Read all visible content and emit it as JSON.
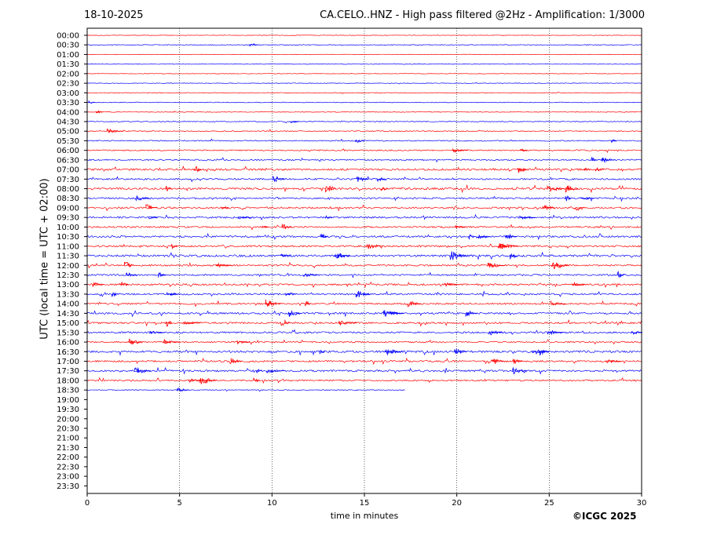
{
  "header": {
    "date": "18-10-2025",
    "title": "CA.CELO..HNZ - High pass filtered @2Hz - Amplification: 1/3000"
  },
  "footer": {
    "copyright": "©ICGC 2025"
  },
  "chart_data": {
    "type": "line",
    "title": "CA.CELO..HNZ - High pass filtered @2Hz - Amplification: 1/3000",
    "xlabel": "time in minutes",
    "ylabel": "UTC (local time = UTC + 02:00)",
    "xlim": [
      0,
      30
    ],
    "x_ticks": [
      0,
      5,
      10,
      15,
      20,
      25,
      30
    ],
    "grid": "vertical dotted lines at each x tick",
    "trace_colors": [
      "#ff0000",
      "#0000ff"
    ],
    "row_labels": [
      "00:00",
      "00:30",
      "01:00",
      "01:30",
      "02:00",
      "02:30",
      "03:00",
      "03:30",
      "04:00",
      "04:30",
      "05:00",
      "05:30",
      "06:00",
      "06:30",
      "07:00",
      "07:30",
      "08:00",
      "08:30",
      "09:00",
      "09:30",
      "10:00",
      "10:30",
      "11:00",
      "11:30",
      "12:00",
      "12:30",
      "13:00",
      "13:30",
      "14:00",
      "14:30",
      "15:00",
      "15:30",
      "16:00",
      "16:30",
      "17:00",
      "17:30",
      "18:00",
      "18:30",
      "19:00",
      "19:30",
      "20:00",
      "20:30",
      "21:00",
      "21:30",
      "22:00",
      "22:30",
      "23:00",
      "23:30"
    ],
    "trace_activity": [
      0.02,
      0.1,
      0.01,
      0.06,
      0.01,
      0.04,
      0.06,
      0.08,
      0.1,
      0.14,
      0.18,
      0.22,
      0.28,
      0.3,
      0.55,
      0.4,
      0.6,
      0.42,
      0.5,
      0.5,
      0.42,
      0.5,
      0.5,
      0.6,
      0.45,
      0.45,
      0.5,
      0.45,
      0.45,
      0.5,
      0.5,
      0.45,
      0.4,
      0.6,
      0.45,
      0.5,
      0.4,
      0.1
    ],
    "last_trace_end_minute": 17.2
  }
}
